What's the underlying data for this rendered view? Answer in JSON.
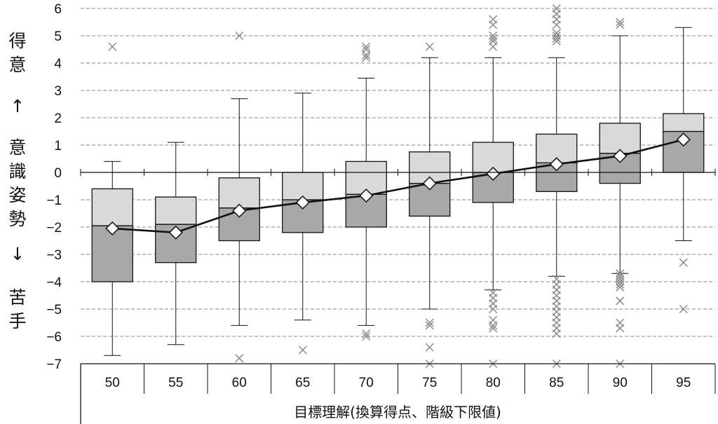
{
  "chart_data": {
    "type": "box",
    "ylabel": [
      "得",
      "意",
      "↑",
      "意",
      "識",
      "姿",
      "勢",
      "↓",
      "苦",
      "手"
    ],
    "xlabel": "目標理解(換算得点、階級下限値)",
    "ylim": [
      -7,
      6
    ],
    "yticks": [
      "6",
      "5",
      "4",
      "3",
      "2",
      "1",
      "0",
      "−1",
      "−2",
      "−3",
      "−4",
      "−5",
      "−6",
      "−7"
    ],
    "grid": true,
    "categories": [
      "50",
      "55",
      "60",
      "65",
      "70",
      "75",
      "80",
      "85",
      "90",
      "95"
    ],
    "boxes": [
      {
        "whisker_low": -6.7,
        "q1": -4.0,
        "median": -1.95,
        "q3": -0.6,
        "whisker_high": 0.4,
        "mean": -2.05,
        "outliers": [
          4.6
        ]
      },
      {
        "whisker_low": -6.3,
        "q1": -3.3,
        "median": -1.9,
        "q3": -0.9,
        "whisker_high": 1.1,
        "mean": -2.2,
        "outliers": []
      },
      {
        "whisker_low": -5.6,
        "q1": -2.5,
        "median": -1.3,
        "q3": -0.2,
        "whisker_high": 2.7,
        "mean": -1.4,
        "outliers": [
          5.0,
          -6.8
        ]
      },
      {
        "whisker_low": -5.4,
        "q1": -2.2,
        "median": -1.0,
        "q3": 0.0,
        "whisker_high": 2.9,
        "mean": -1.1,
        "outliers": [
          -6.5
        ]
      },
      {
        "whisker_low": -5.6,
        "q1": -2.0,
        "median": -0.8,
        "q3": 0.4,
        "whisker_high": 3.45,
        "mean": -0.85,
        "outliers": [
          4.6,
          4.5,
          4.3,
          4.2,
          -5.9,
          -6.0
        ]
      },
      {
        "whisker_low": -5.0,
        "q1": -1.6,
        "median": -0.4,
        "q3": 0.75,
        "whisker_high": 4.2,
        "mean": -0.4,
        "outliers": [
          4.6,
          -5.5,
          -5.6,
          -6.4,
          -7.0
        ]
      },
      {
        "whisker_low": -4.3,
        "q1": -1.1,
        "median": 0.0,
        "q3": 1.1,
        "whisker_high": 4.2,
        "mean": -0.05,
        "outliers": [
          5.6,
          5.4,
          5.0,
          4.9,
          4.8,
          4.6,
          -4.4,
          -4.6,
          -4.8,
          -5.0,
          -5.4,
          -5.6,
          -5.7,
          -7.0
        ]
      },
      {
        "whisker_low": -3.8,
        "q1": -0.7,
        "median": 0.35,
        "q3": 1.4,
        "whisker_high": 4.2,
        "mean": 0.3,
        "outliers": [
          6.0,
          5.8,
          5.6,
          5.4,
          5.1,
          5.0,
          4.9,
          4.8,
          -3.9,
          -4.1,
          -4.3,
          -4.5,
          -4.7,
          -4.9,
          -5.1,
          -5.3,
          -5.5,
          -5.7,
          -5.9,
          -7.0
        ]
      },
      {
        "whisker_low": -3.7,
        "q1": -0.4,
        "median": 0.7,
        "q3": 1.8,
        "whisker_high": 5.0,
        "mean": 0.6,
        "outliers": [
          5.5,
          5.4,
          -3.7,
          -3.8,
          -3.9,
          -4.0,
          -4.1,
          -4.2,
          -4.7,
          -5.5,
          -5.7,
          -7.0
        ]
      },
      {
        "whisker_low": -2.5,
        "q1": 0.0,
        "median": 1.5,
        "q3": 2.15,
        "whisker_high": 5.3,
        "mean": 1.2,
        "outliers": [
          -3.3,
          -5.0
        ]
      }
    ],
    "colors": {
      "lower_box": "#a8a8a8",
      "upper_box": "#d9d9d9",
      "box_edge": "#111111",
      "mean_line": "#111111",
      "mean_marker": "#ffffff",
      "outlier": "#8a8a8a",
      "grid": "#8a8a8a"
    }
  }
}
